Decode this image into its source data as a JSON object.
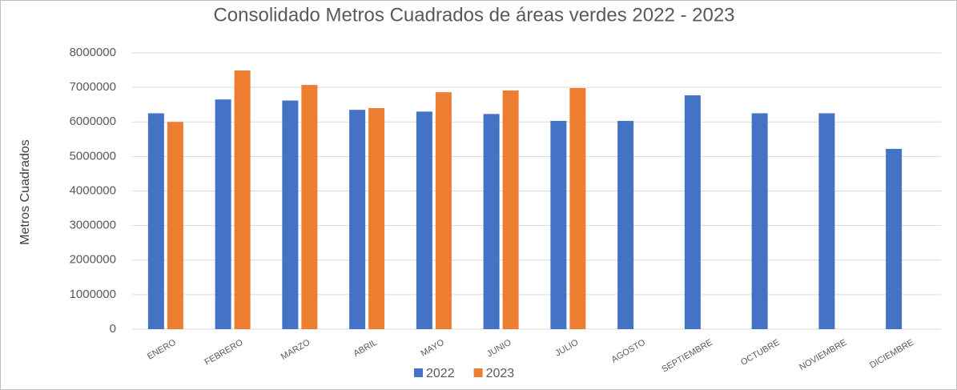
{
  "chart_data": {
    "type": "bar",
    "title": "Consolidado Metros Cuadrados de áreas verdes 2022 - 2023",
    "y_label": "Metros Cuadrados",
    "categories": [
      "ENERO",
      "FEBRERO",
      "MARZO",
      "ABRIL",
      "MAYO",
      "JUNIO",
      "JULIO",
      "AGOSTO",
      "SEPTIEMBRE",
      "OCTUBRE",
      "NOVIEMBRE",
      "DICIEMBRE"
    ],
    "series": [
      {
        "name": "2022",
        "color": "#4472c4",
        "values": [
          6250000,
          6650000,
          6620000,
          6350000,
          6300000,
          6230000,
          6030000,
          6030000,
          6770000,
          6250000,
          6250000,
          5220000
        ]
      },
      {
        "name": "2023",
        "color": "#ed7d31",
        "values": [
          6000000,
          7490000,
          7070000,
          6400000,
          6860000,
          6910000,
          6980000,
          null,
          null,
          null,
          null,
          null
        ]
      }
    ],
    "ylim": [
      0,
      8000000
    ],
    "yticks": [
      0,
      1000000,
      2000000,
      3000000,
      4000000,
      5000000,
      6000000,
      7000000,
      8000000
    ],
    "grid": true,
    "legend": "bottom"
  }
}
